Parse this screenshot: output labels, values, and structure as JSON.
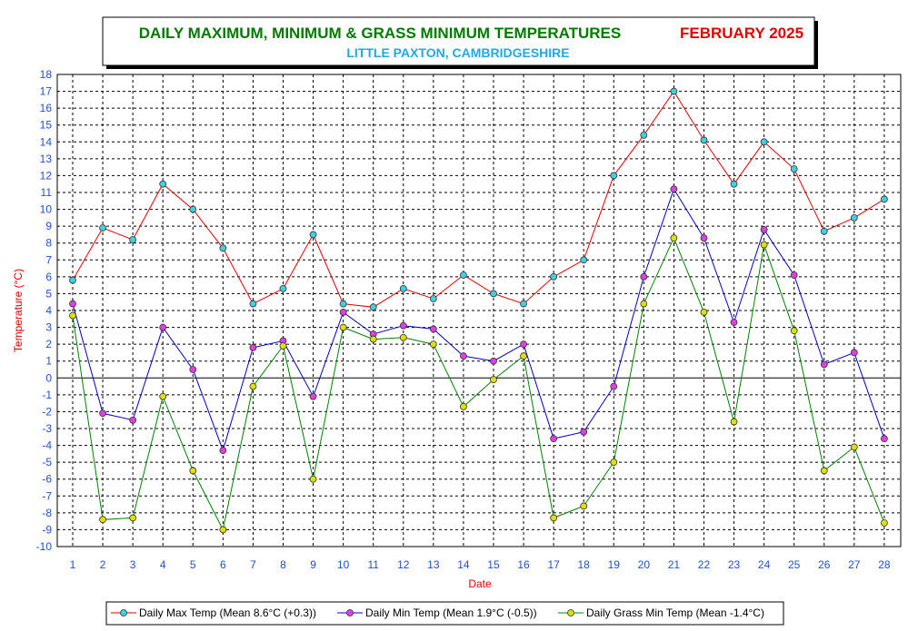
{
  "chart_data": {
    "type": "line",
    "title": "DAILY MAXIMUM, MINIMUM & GRASS MINIMUM TEMPERATURES",
    "title_month": "FEBRUARY 2025",
    "subtitle": "LITTLE PAXTON, CAMBRIDGESHIRE",
    "xlabel": "Date",
    "ylabel": "Temperature (°C)",
    "ylim": [
      -10,
      18
    ],
    "yticks": [
      -10,
      -9,
      -8,
      -7,
      -6,
      -5,
      -4,
      -3,
      -2,
      -1,
      0,
      1,
      2,
      3,
      4,
      5,
      6,
      7,
      8,
      9,
      10,
      11,
      12,
      13,
      14,
      15,
      16,
      17,
      18
    ],
    "x": [
      1,
      2,
      3,
      4,
      5,
      6,
      7,
      8,
      9,
      10,
      11,
      12,
      13,
      14,
      15,
      16,
      17,
      18,
      19,
      20,
      21,
      22,
      23,
      24,
      25,
      26,
      27,
      28
    ],
    "grid": true,
    "legend_position": "bottom",
    "series": [
      {
        "name": "Daily Max Temp (Mean 8.6°C (+0.3))",
        "line_color": "#E00000",
        "marker_color": "#40D0E0",
        "values": [
          5.8,
          8.9,
          8.2,
          11.5,
          10.0,
          7.7,
          4.4,
          5.3,
          8.5,
          4.4,
          4.2,
          5.3,
          4.7,
          6.1,
          5.0,
          4.4,
          6.0,
          7.0,
          12.0,
          14.4,
          17.0,
          14.1,
          11.5,
          14.0,
          12.4,
          8.7,
          9.5,
          10.6
        ]
      },
      {
        "name": "Daily Min Temp (Mean 1.9°C (-0.5))",
        "line_color": "#0000C0",
        "marker_color": "#E040E0",
        "values": [
          4.4,
          -2.1,
          -2.5,
          3.0,
          0.5,
          -4.3,
          1.8,
          2.2,
          -1.1,
          3.9,
          2.6,
          3.1,
          2.9,
          1.3,
          1.0,
          2.0,
          -3.6,
          -3.2,
          -0.5,
          6.0,
          11.2,
          8.3,
          3.3,
          8.8,
          6.1,
          0.8,
          1.5,
          -3.6
        ]
      },
      {
        "name": "Daily Grass Min Temp (Mean -1.4°C)",
        "line_color": "#008000",
        "marker_color": "#E0E000",
        "values": [
          3.7,
          -8.4,
          -8.3,
          -1.1,
          -5.5,
          -9.0,
          -0.5,
          1.9,
          -6.0,
          3.0,
          2.3,
          2.4,
          2.0,
          -1.7,
          -0.1,
          1.3,
          -8.3,
          -7.6,
          -5.0,
          4.4,
          8.3,
          3.9,
          -2.6,
          7.9,
          2.8,
          -5.5,
          -4.1,
          -8.6
        ]
      }
    ]
  }
}
